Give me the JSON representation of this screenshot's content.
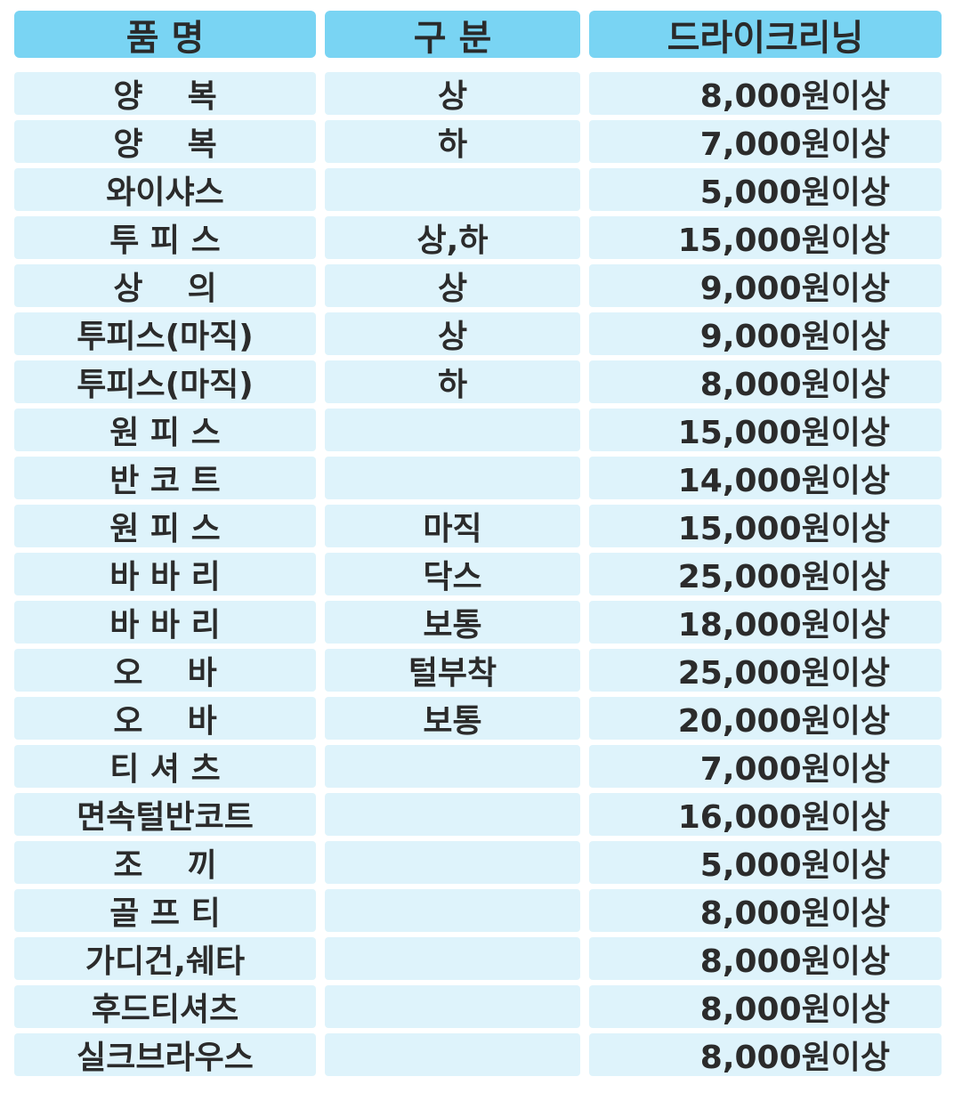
{
  "headers": [
    "품  명",
    "구  분",
    "드라이크리닝"
  ],
  "rows": [
    {
      "item": "양    복",
      "type": "상",
      "price": "8,000원이상"
    },
    {
      "item": "양    복",
      "type": "하",
      "price": "7,000원이상"
    },
    {
      "item": "와이샤스",
      "type": "",
      "price": "5,000원이상"
    },
    {
      "item": "투 피 스",
      "type": "상,하",
      "price": "15,000원이상"
    },
    {
      "item": "상    의",
      "type": "상",
      "price": "9,000원이상"
    },
    {
      "item": "투피스(마직)",
      "type": "상",
      "price": "9,000원이상"
    },
    {
      "item": "투피스(마직)",
      "type": "하",
      "price": "8,000원이상"
    },
    {
      "item": "원 피 스",
      "type": "",
      "price": "15,000원이상"
    },
    {
      "item": "반 코 트",
      "type": "",
      "price": "14,000원이상"
    },
    {
      "item": "원 피 스",
      "type": "마직",
      "price": "15,000원이상"
    },
    {
      "item": "바 바 리",
      "type": "닥스",
      "price": "25,000원이상"
    },
    {
      "item": "바 바 리",
      "type": "보통",
      "price": "18,000원이상"
    },
    {
      "item": "오    바",
      "type": "털부착",
      "price": "25,000원이상"
    },
    {
      "item": "오    바",
      "type": "보통",
      "price": "20,000원이상"
    },
    {
      "item": "티 셔 츠",
      "type": "",
      "price": "7,000원이상"
    },
    {
      "item": "면속털반코트",
      "type": "",
      "price": "16,000원이상"
    },
    {
      "item": "조    끼",
      "type": "",
      "price": "5,000원이상"
    },
    {
      "item": "골 프 티",
      "type": "",
      "price": "8,000원이상"
    },
    {
      "item": "가디건,쉐타",
      "type": "",
      "price": "8,000원이상"
    },
    {
      "item": "후드티셔츠",
      "type": "",
      "price": "8,000원이상"
    },
    {
      "item": "실크브라우스",
      "type": "",
      "price": "8,000원이상"
    }
  ]
}
